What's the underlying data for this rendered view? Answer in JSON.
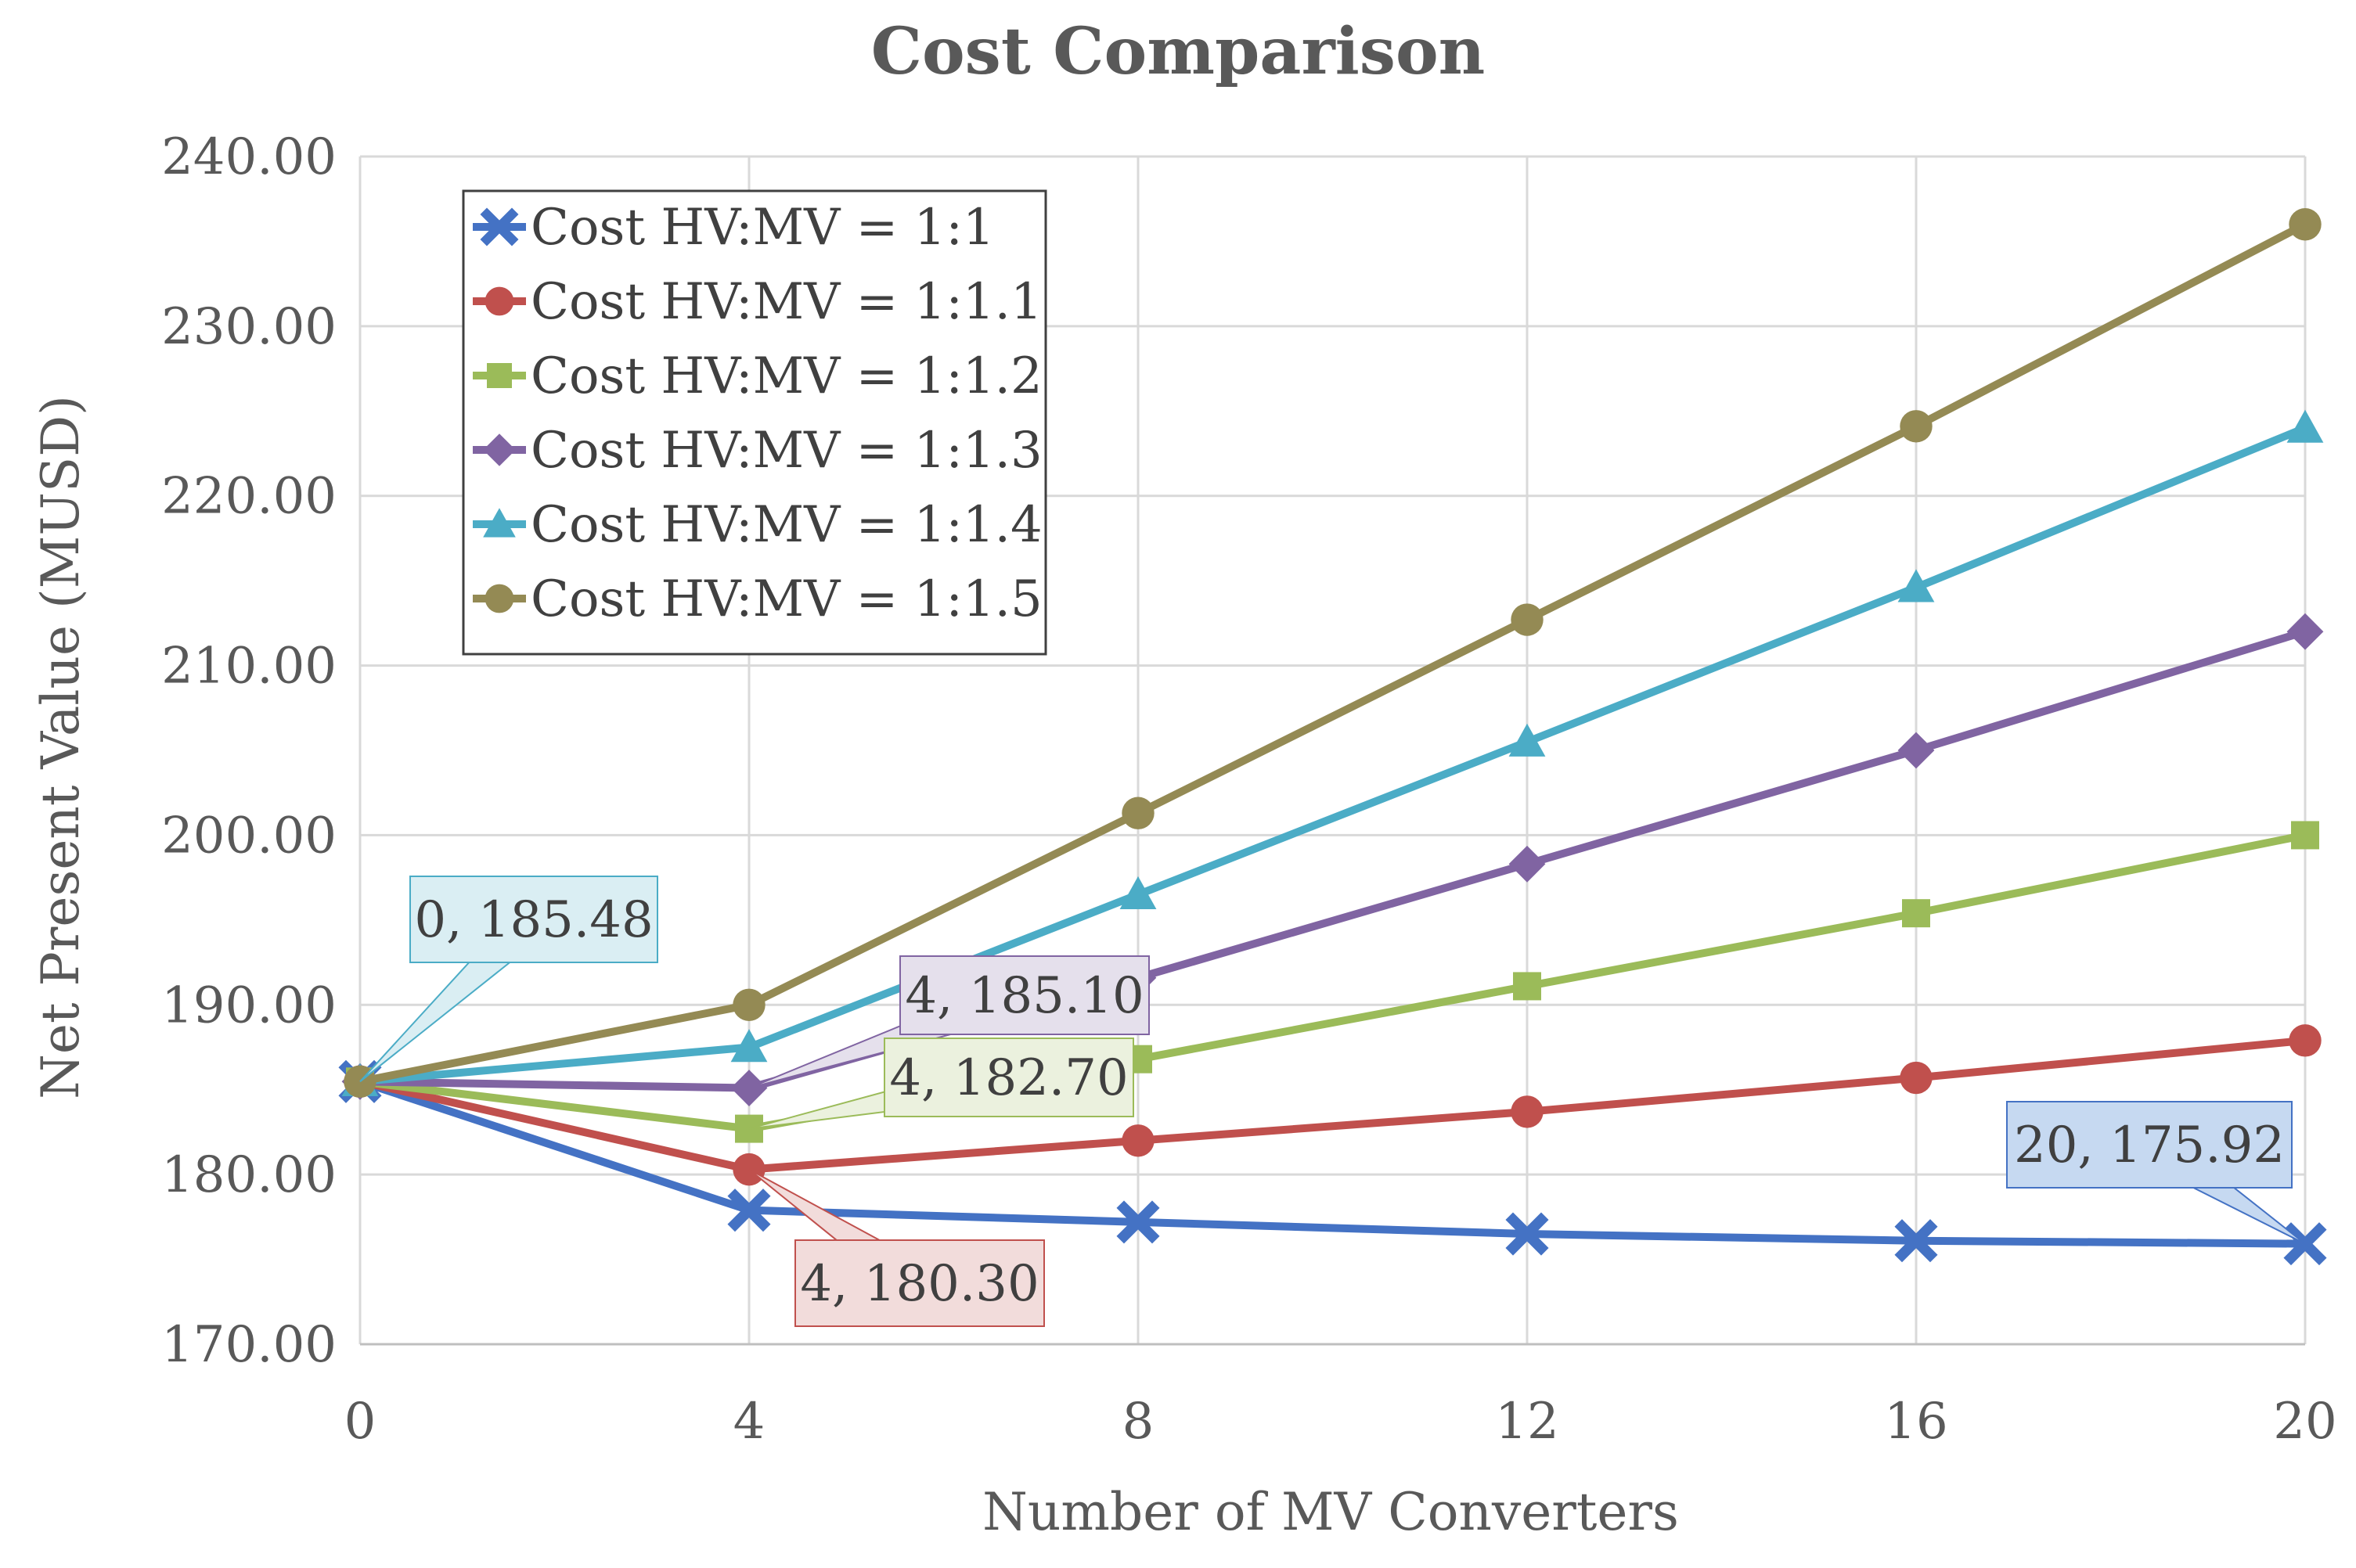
{
  "chart_data": {
    "type": "line",
    "title": "Cost Comparison",
    "xlabel": "Number of MV Converters",
    "ylabel": "Net Present Value (MUSD)",
    "xlim": [
      0,
      20
    ],
    "ylim": [
      170,
      240
    ],
    "x_ticks": [
      0,
      4,
      8,
      12,
      16,
      20
    ],
    "x_tick_labels": [
      "0",
      "4",
      "8",
      "12",
      "16",
      "20"
    ],
    "y_ticks": [
      170,
      180,
      190,
      200,
      210,
      220,
      230,
      240
    ],
    "y_tick_labels": [
      "170.00",
      "180.00",
      "190.00",
      "200.00",
      "210.00",
      "220.00",
      "230.00",
      "240.00"
    ],
    "grid": true,
    "legend_position": "top-left",
    "x": [
      0,
      4,
      8,
      12,
      16,
      20
    ],
    "series": [
      {
        "name": "Cost HV:MV = 1:1",
        "color": "#4472C4",
        "marker": "x",
        "values": [
          185.48,
          177.9,
          177.2,
          176.5,
          176.1,
          175.92
        ]
      },
      {
        "name": "Cost HV:MV = 1:1.1",
        "color": "#C0504D",
        "marker": "circle",
        "values": [
          185.48,
          180.3,
          182.0,
          183.7,
          185.7,
          187.9
        ]
      },
      {
        "name": "Cost HV:MV = 1:1.2",
        "color": "#9BBB59",
        "marker": "square",
        "values": [
          185.48,
          182.7,
          186.8,
          191.1,
          195.4,
          200.0
        ]
      },
      {
        "name": "Cost HV:MV = 1:1.3",
        "color": "#8064A2",
        "marker": "diamond",
        "values": [
          185.48,
          185.1,
          191.6,
          198.3,
          205.0,
          212.0
        ]
      },
      {
        "name": "Cost HV:MV = 1:1.4",
        "color": "#4BACC6",
        "marker": "triangle",
        "values": [
          185.48,
          187.5,
          196.5,
          205.5,
          214.6,
          224.0
        ]
      },
      {
        "name": "Cost HV:MV = 1:1.5",
        "color": "#948A54",
        "marker": "circle",
        "values": [
          185.48,
          190.0,
          201.3,
          212.7,
          224.1,
          236.0
        ]
      }
    ],
    "annotations": [
      {
        "text": "0,  185.48",
        "x": 0,
        "y": 185.48,
        "series": 5,
        "fill": "#DAEEF3",
        "stroke": "#4BACC6"
      },
      {
        "text": "4,  185.10",
        "x": 4,
        "y": 185.1,
        "series": 3,
        "fill": "#E5E0EC",
        "stroke": "#8064A2"
      },
      {
        "text": "4,  182.70",
        "x": 4,
        "y": 182.7,
        "series": 2,
        "fill": "#EBF1DE",
        "stroke": "#9BBB59"
      },
      {
        "text": "4,  180.30",
        "x": 4,
        "y": 180.3,
        "series": 1,
        "fill": "#F2DCDB",
        "stroke": "#C0504D"
      },
      {
        "text": "20,  175.92",
        "x": 20,
        "y": 175.92,
        "series": 0,
        "fill": "#C6D9F1",
        "stroke": "#4472C4"
      }
    ]
  }
}
